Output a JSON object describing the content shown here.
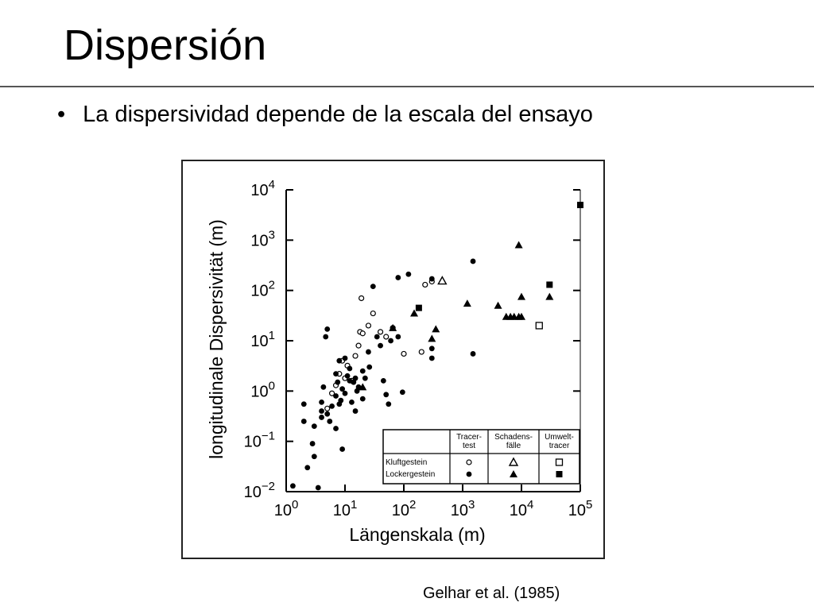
{
  "slide": {
    "title": "Dispersión",
    "bullet_symbol": "•",
    "bullet_text": "La dispersividad depende de la escala del ensayo",
    "citation": "Gelhar et al. (1985)"
  },
  "chart_data": {
    "type": "scatter",
    "xlabel": "Längenskala (m)",
    "ylabel": "longitudinale Dispersivität (m)",
    "xscale": "log",
    "yscale": "log",
    "xlim": [
      1,
      100000
    ],
    "ylim": [
      0.01,
      10000
    ],
    "x_ticks": [
      {
        "base": "10",
        "exp": "0"
      },
      {
        "base": "10",
        "exp": "1"
      },
      {
        "base": "10",
        "exp": "2"
      },
      {
        "base": "10",
        "exp": "3"
      },
      {
        "base": "10",
        "exp": "4"
      },
      {
        "base": "10",
        "exp": "5"
      }
    ],
    "y_ticks": [
      {
        "base": "10",
        "exp": "−2"
      },
      {
        "base": "10",
        "exp": "−1"
      },
      {
        "base": "10",
        "exp": "0"
      },
      {
        "base": "10",
        "exp": "1"
      },
      {
        "base": "10",
        "exp": "2"
      },
      {
        "base": "10",
        "exp": "3"
      },
      {
        "base": "10",
        "exp": "4"
      }
    ],
    "legend": {
      "placement": "bottom-right",
      "col_headers": [
        "Tracer-\ntest",
        "Schadens-\nfälle",
        "Umwelt-\ntracer"
      ],
      "row_labels": [
        "Kluftgestein",
        "Lockergestein"
      ]
    },
    "series": [
      {
        "name": "Kluftgestein / Tracertest",
        "marker": "circle-open",
        "points": [
          [
            5,
            0.45
          ],
          [
            6,
            0.9
          ],
          [
            7,
            1.3
          ],
          [
            8,
            2.2
          ],
          [
            9,
            4
          ],
          [
            10,
            1.8
          ],
          [
            11,
            3.2
          ],
          [
            13,
            1.6
          ],
          [
            15,
            5
          ],
          [
            17,
            8
          ],
          [
            18,
            15
          ],
          [
            19,
            70
          ],
          [
            20,
            14
          ],
          [
            25,
            20
          ],
          [
            30,
            35
          ],
          [
            40,
            15
          ],
          [
            50,
            12
          ],
          [
            65,
            18
          ],
          [
            100,
            5.5
          ],
          [
            200,
            6
          ],
          [
            230,
            130
          ],
          [
            300,
            150
          ]
        ]
      },
      {
        "name": "Lockergestein / Tracertest",
        "marker": "circle-filled",
        "points": [
          [
            1.3,
            0.013
          ],
          [
            2,
            0.25
          ],
          [
            2,
            0.55
          ],
          [
            2.3,
            0.03
          ],
          [
            2.8,
            0.09
          ],
          [
            3,
            0.05
          ],
          [
            3,
            0.2
          ],
          [
            3.5,
            0.012
          ],
          [
            4,
            0.4
          ],
          [
            4,
            0.6
          ],
          [
            4,
            0.3
          ],
          [
            4.3,
            1.2
          ],
          [
            4.7,
            12
          ],
          [
            5,
            17
          ],
          [
            5,
            0.35
          ],
          [
            5.5,
            0.25
          ],
          [
            6,
            0.5
          ],
          [
            7,
            0.8
          ],
          [
            7,
            2.2
          ],
          [
            7,
            0.18
          ],
          [
            7.5,
            1.5
          ],
          [
            8,
            0.55
          ],
          [
            8,
            4
          ],
          [
            8.5,
            0.65
          ],
          [
            9,
            1.1
          ],
          [
            9,
            0.07
          ],
          [
            10,
            0.9
          ],
          [
            10,
            4.5
          ],
          [
            11,
            2
          ],
          [
            12,
            2.8
          ],
          [
            12,
            1.6
          ],
          [
            13,
            0.6
          ],
          [
            14,
            1.5
          ],
          [
            15,
            0.4
          ],
          [
            15,
            1.8
          ],
          [
            16,
            1
          ],
          [
            17,
            1.2
          ],
          [
            20,
            0.7
          ],
          [
            20,
            2.5
          ],
          [
            22,
            1.8
          ],
          [
            25,
            6
          ],
          [
            26,
            3
          ],
          [
            30,
            120
          ],
          [
            35,
            12
          ],
          [
            40,
            8
          ],
          [
            45,
            1.6
          ],
          [
            50,
            0.85
          ],
          [
            55,
            0.55
          ],
          [
            60,
            10
          ],
          [
            80,
            12
          ],
          [
            80,
            180
          ],
          [
            95,
            0.95
          ],
          [
            120,
            210
          ],
          [
            300,
            170
          ],
          [
            300,
            7
          ],
          [
            300,
            4.5
          ],
          [
            1500,
            380
          ],
          [
            1500,
            5.5
          ]
        ]
      },
      {
        "name": "Kluftgestein / Schadensfälle",
        "marker": "triangle-open",
        "points": [
          [
            450,
            155
          ]
        ]
      },
      {
        "name": "Lockergestein / Schadensfälle",
        "marker": "triangle-filled",
        "points": [
          [
            20,
            1.2
          ],
          [
            65,
            18
          ],
          [
            150,
            35
          ],
          [
            300,
            11
          ],
          [
            350,
            17
          ],
          [
            1200,
            55
          ],
          [
            4000,
            50
          ],
          [
            5500,
            30
          ],
          [
            6500,
            30
          ],
          [
            7500,
            30
          ],
          [
            9000,
            30
          ],
          [
            10000,
            30
          ],
          [
            9000,
            800
          ],
          [
            10000,
            75
          ],
          [
            30000,
            75
          ]
        ]
      },
      {
        "name": "Kluftgestein / Umwelttracer",
        "marker": "square-open",
        "points": [
          [
            20000,
            20
          ]
        ]
      },
      {
        "name": "Lockergestein / Umwelttracer",
        "marker": "square-filled",
        "points": [
          [
            180,
            45
          ],
          [
            30000,
            130
          ],
          [
            100000,
            5000
          ]
        ]
      }
    ]
  }
}
